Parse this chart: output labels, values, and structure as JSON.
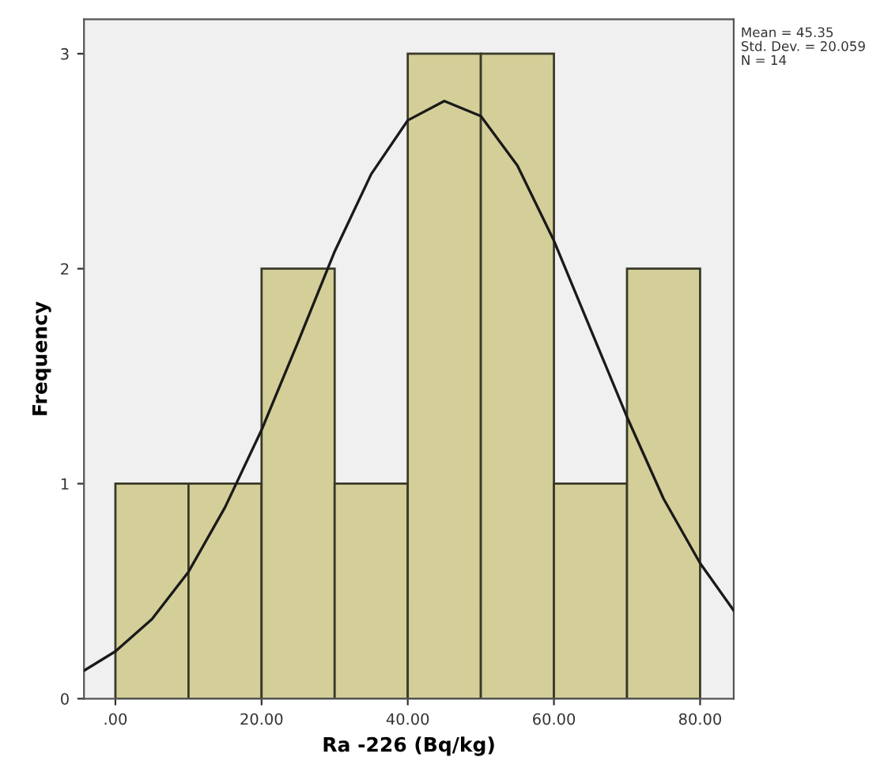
{
  "chart_data": {
    "type": "histogram",
    "xlabel": "Ra -226 (Bq/kg)",
    "ylabel": "Frequency",
    "bins": [
      0,
      10,
      20,
      30,
      40,
      50,
      60,
      70,
      80
    ],
    "series": [
      {
        "type": "histogram",
        "color": "#d4cf98",
        "values": [
          1,
          1,
          2,
          1,
          3,
          3,
          1,
          2
        ]
      },
      {
        "type": "line",
        "color": "#1a1a1a",
        "x": [
          -4.3,
          0,
          5,
          10,
          15,
          20,
          25,
          30,
          35,
          40,
          45,
          50,
          55,
          60,
          65,
          70,
          75,
          80,
          84.6
        ],
        "values": [
          0.13,
          0.22,
          0.37,
          0.59,
          0.89,
          1.25,
          1.66,
          2.08,
          2.44,
          2.69,
          2.78,
          2.71,
          2.48,
          2.13,
          1.72,
          1.31,
          0.93,
          0.63,
          0.41
        ]
      }
    ],
    "xlim": [
      -4.3,
      84.6
    ],
    "ylim": [
      0,
      3.16
    ],
    "xticks": [
      {
        "value": 0,
        "label": ".00"
      },
      {
        "value": 20,
        "label": "20.00"
      },
      {
        "value": 40,
        "label": "40.00"
      },
      {
        "value": 60,
        "label": "60.00"
      },
      {
        "value": 80,
        "label": "80.00"
      }
    ],
    "yticks": [
      0,
      1,
      2,
      3
    ],
    "grid": false,
    "annotations": [
      "Mean = 45.35",
      "Std. Dev. = 20.059",
      "N = 14"
    ]
  }
}
